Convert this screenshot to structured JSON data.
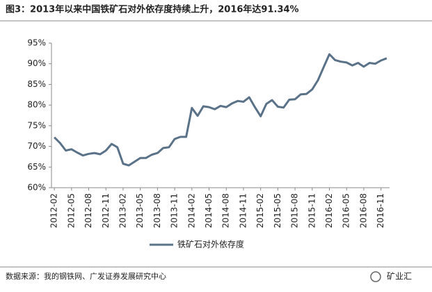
{
  "chart_data": {
    "type": "line",
    "title": "图3：2013年以来中国铁矿石对外依存度持续上升，2016年达91.34%",
    "source": "数据来源：我的钢铁网、广发证券发展研究中心",
    "watermark": "矿业汇",
    "categories": [
      "2012-02",
      null,
      null,
      "2012-05",
      null,
      null,
      "2012-08",
      null,
      null,
      "2012-11",
      null,
      null,
      "2013-02",
      null,
      null,
      "2013-05",
      null,
      null,
      "2013-08",
      null,
      null,
      "2013-11",
      null,
      null,
      "2014-02",
      null,
      null,
      "2014-05",
      null,
      null,
      "2014-08",
      null,
      null,
      "2014-11",
      null,
      null,
      "2015-02",
      null,
      null,
      "2015-05",
      null,
      null,
      "2015-08",
      null,
      null,
      "2015-11",
      null,
      null,
      "2016-02",
      null,
      null,
      "2016-05",
      null,
      null,
      "2016-08",
      null,
      null,
      "2016-11",
      null
    ],
    "series": [
      {
        "name": "铁矿石对外依存度",
        "color": "#5a7288",
        "values": [
          72.2,
          70.8,
          69.0,
          69.3,
          68.5,
          67.8,
          68.2,
          68.4,
          68.1,
          69.0,
          70.6,
          69.8,
          65.8,
          65.4,
          66.3,
          67.2,
          67.2,
          68.0,
          68.4,
          69.6,
          69.8,
          71.8,
          72.3,
          72.3,
          79.3,
          77.4,
          79.7,
          79.5,
          79.0,
          79.8,
          79.5,
          80.4,
          81.0,
          80.8,
          81.9,
          79.5,
          77.3,
          80.3,
          81.2,
          79.6,
          79.4,
          81.3,
          81.4,
          82.6,
          82.7,
          83.8,
          86.0,
          89.2,
          92.3,
          90.9,
          90.5,
          90.3,
          89.6,
          90.2,
          89.3,
          90.2,
          90.0,
          90.8,
          91.34
        ]
      }
    ],
    "ylim": [
      60,
      95
    ],
    "yticks": [
      {
        "value": 60,
        "label": "60%"
      },
      {
        "value": 65,
        "label": "65%"
      },
      {
        "value": 70,
        "label": "70%"
      },
      {
        "value": 75,
        "label": "75%"
      },
      {
        "value": 80,
        "label": "80%"
      },
      {
        "value": 85,
        "label": "85%"
      },
      {
        "value": 90,
        "label": "90%"
      },
      {
        "value": 95,
        "label": "95%"
      }
    ],
    "grid": false,
    "legend": "bottom"
  }
}
